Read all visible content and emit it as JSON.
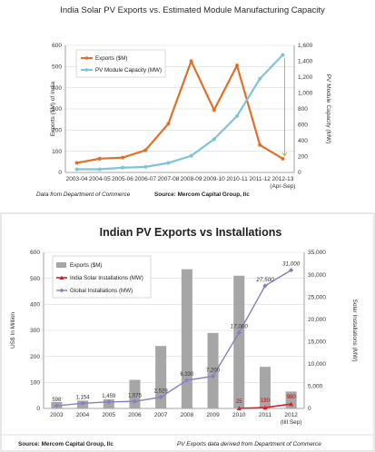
{
  "chart_data": [
    {
      "type": "line",
      "title": "India Solar PV Exports vs. Estimated Module Manufacturing Capacity",
      "categories": [
        "2003-04",
        "2004-05",
        "2005-06",
        "2006-07",
        "2007-08",
        "2008-09",
        "2009-10",
        "2010-11",
        "2011-12",
        "2012-13"
      ],
      "x_extra_label": "(Apr-Sep)",
      "series": [
        {
          "name": "Exports ($M)",
          "axis": "left",
          "color": "#e07028",
          "values": [
            45,
            65,
            70,
            105,
            230,
            525,
            295,
            505,
            130,
            65
          ]
        },
        {
          "name": "PV Module Capacity (MW)",
          "axis": "right",
          "color": "#7ec4d8",
          "values": [
            40,
            40,
            60,
            70,
            120,
            210,
            420,
            710,
            1180,
            1480
          ]
        }
      ],
      "ylabel": "Exports ($M) of India",
      "y2label": "PV Module Capacity (MW)",
      "ylim": [
        0,
        600
      ],
      "yticks": [
        "0",
        "100",
        "200",
        "300",
        "400",
        "500",
        "600"
      ],
      "y2lim": [
        0,
        1600
      ],
      "y2ticks": [
        "0",
        "200",
        "400",
        "600",
        "800",
        "1,000",
        "1,200",
        "1,400",
        "1,600"
      ],
      "grid": true,
      "legend_position": "top-left",
      "footnote_left": "Data from Department of Commerce",
      "footnote_right": "Source: Mercom Capital Group, llc"
    },
    {
      "type": "bar",
      "title": "Indian PV Exports vs Installations",
      "categories": [
        "2003",
        "2004",
        "2005",
        "2006",
        "2007",
        "2008",
        "2009",
        "2010",
        "2011",
        "2012"
      ],
      "x_extra_label": "(till Sep)",
      "series": [
        {
          "name": "Exports ($M)",
          "kind": "bar",
          "axis": "left",
          "color": "#a6a6a6",
          "values": [
            25,
            30,
            35,
            110,
            240,
            535,
            290,
            510,
            160,
            65
          ]
        },
        {
          "name": "India Solar Installations (MW)",
          "kind": "line",
          "axis": "right",
          "color": "#e02020",
          "values": [
            null,
            null,
            null,
            null,
            null,
            null,
            null,
            25,
            190,
            980
          ],
          "labels": [
            "",
            "",
            "",
            "",
            "",
            "",
            "",
            "25",
            "190",
            "980"
          ]
        },
        {
          "name": "Global Installations (MW)",
          "kind": "line",
          "axis": "right",
          "color": "#8c7dbf",
          "values": [
            598,
            1154,
            1459,
            1575,
            2529,
            6330,
            7200,
            17000,
            27500,
            31000
          ],
          "labels": [
            "598",
            "1,154",
            "1,459",
            "1,575",
            "2,529",
            "6,330",
            "7,200",
            "17,000",
            "27,500",
            "31,000"
          ]
        }
      ],
      "ylabel": "US$ In Million",
      "y2label": "Solar Installations (MW)",
      "ylim": [
        0,
        600
      ],
      "yticks": [
        "0",
        "100",
        "200",
        "300",
        "400",
        "500",
        "600"
      ],
      "y2lim": [
        0,
        35000
      ],
      "y2ticks": [
        "0",
        "5,000",
        "10,000",
        "15,000",
        "20,000",
        "25,000",
        "30,000",
        "35,000"
      ],
      "grid": true,
      "legend_position": "top-left",
      "footnote_left": "Source: Mercom Capital Group, llc",
      "footnote_right": "PV Exports data derived from Department of Commerce"
    }
  ]
}
